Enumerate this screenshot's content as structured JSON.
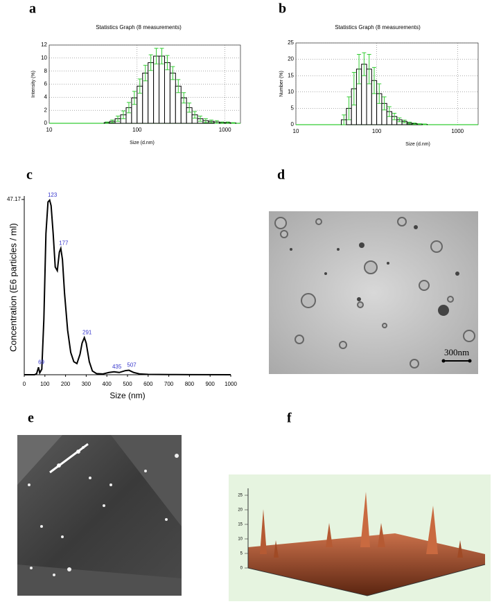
{
  "panel_labels": [
    "a",
    "b",
    "c",
    "d",
    "e",
    "f"
  ],
  "chart_data": [
    {
      "type": "histogram",
      "title": "Statistics Graph (8 measurements)",
      "xlabel": "Size (d.nm)",
      "ylabel": "Intensity (%)",
      "bins": [
        42.2,
        48.7,
        56.2,
        64.9,
        75.0,
        86.6,
        100,
        115.5,
        133.4,
        154.0,
        177.8,
        205.4,
        237.1,
        273.8,
        316.2,
        365.2,
        421.7,
        487.0,
        562.3,
        649.4,
        749.9,
        866.0,
        1000,
        1154.8,
        1333.5
      ],
      "values": [
        0.1,
        0.3,
        0.7,
        1.3,
        2.4,
        3.9,
        5.7,
        7.7,
        9.3,
        10.3,
        10.3,
        9.3,
        7.7,
        5.7,
        3.9,
        2.4,
        1.3,
        0.7,
        0.4,
        0.3,
        0.2,
        0.1,
        0.1,
        0.05
      ],
      "errors": [
        0.1,
        0.2,
        0.4,
        0.6,
        0.8,
        1,
        1.1,
        1.2,
        1.2,
        1.2,
        1.2,
        1.1,
        1,
        1,
        0.8,
        0.7,
        0.5,
        0.4,
        0.3,
        0.2,
        0.2,
        0.1,
        0.1,
        0.05
      ],
      "xlim": [
        10,
        1500
      ],
      "ylim": [
        0,
        12
      ],
      "xticks": [
        10,
        100,
        1000
      ],
      "yticks": [
        0,
        2,
        4,
        6,
        8,
        10,
        12
      ],
      "log_x": true,
      "grid": true,
      "color": "#ffffff",
      "edge_color": "#000000",
      "error_color": "#33cc33"
    },
    {
      "type": "histogram",
      "title": "Statistics Graph (8 measurements)",
      "xlabel": "Size (d.nm)",
      "ylabel": "Number (%)",
      "bins": [
        36.5,
        42.2,
        48.7,
        56.2,
        64.9,
        75.0,
        86.6,
        100,
        115.5,
        133.4,
        154.0,
        177.8,
        205.4,
        237.1,
        273.8,
        316.2,
        365.2,
        421.7
      ],
      "values": [
        1.5,
        5,
        11,
        17,
        18.5,
        17,
        13.5,
        9.5,
        6.5,
        4,
        2.5,
        1.5,
        1,
        0.5,
        0.3,
        0.2,
        0.1
      ],
      "errors": [
        1.5,
        3.5,
        5,
        4.5,
        3.5,
        4.5,
        4,
        3,
        2,
        1.5,
        1,
        0.6,
        0.4,
        0.3,
        0.2,
        0.1,
        0.1
      ],
      "xlim": [
        10,
        1800
      ],
      "ylim": [
        0,
        25
      ],
      "xticks": [
        10,
        100,
        1000
      ],
      "yticks": [
        0,
        5,
        10,
        15,
        20,
        25
      ],
      "log_x": true,
      "grid": true,
      "color": "#ffffff",
      "edge_color": "#000000",
      "error_color": "#33cc33"
    },
    {
      "type": "line",
      "xlabel": "Size (nm)",
      "ylabel": "Concentration (E6 particles / ml)",
      "x": [
        0,
        50,
        60,
        69,
        75,
        85,
        95,
        105,
        115,
        123,
        130,
        140,
        150,
        160,
        170,
        177,
        185,
        195,
        210,
        225,
        240,
        255,
        270,
        280,
        291,
        300,
        315,
        330,
        350,
        380,
        410,
        435,
        460,
        490,
        507,
        530,
        560,
        600,
        700,
        800,
        1000
      ],
      "values": [
        0,
        0,
        0.3,
        2,
        0.5,
        1.5,
        15,
        38,
        46.5,
        47,
        45.5,
        38,
        29,
        28,
        33,
        34,
        31,
        22,
        12,
        6,
        3.5,
        3,
        5.5,
        8.5,
        10,
        8.5,
        3.5,
        1,
        0.3,
        0.2,
        0.6,
        0.8,
        0.6,
        1.1,
        1.2,
        0.6,
        0.2,
        0.1,
        0.05,
        0.03,
        0
      ],
      "xlim": [
        0,
        1000
      ],
      "ylim": [
        0,
        47.17
      ],
      "xticks": [
        0,
        100,
        200,
        300,
        400,
        500,
        600,
        700,
        800,
        900,
        1000
      ],
      "yticks": [
        47.17
      ],
      "peaks": [
        {
          "x": 69,
          "y": 2
        },
        {
          "x": 123,
          "y": 47
        },
        {
          "x": 177,
          "y": 34
        },
        {
          "x": 291,
          "y": 10
        },
        {
          "x": 435,
          "y": 0.8
        },
        {
          "x": 507,
          "y": 1.2
        }
      ],
      "color": "#000000",
      "peak_label_color": "#3333cc"
    }
  ],
  "tem_image": {
    "scale_bar": "300nm"
  },
  "afm_3d": {
    "z_ticks": [
      0,
      5,
      10,
      15,
      20,
      25
    ]
  }
}
